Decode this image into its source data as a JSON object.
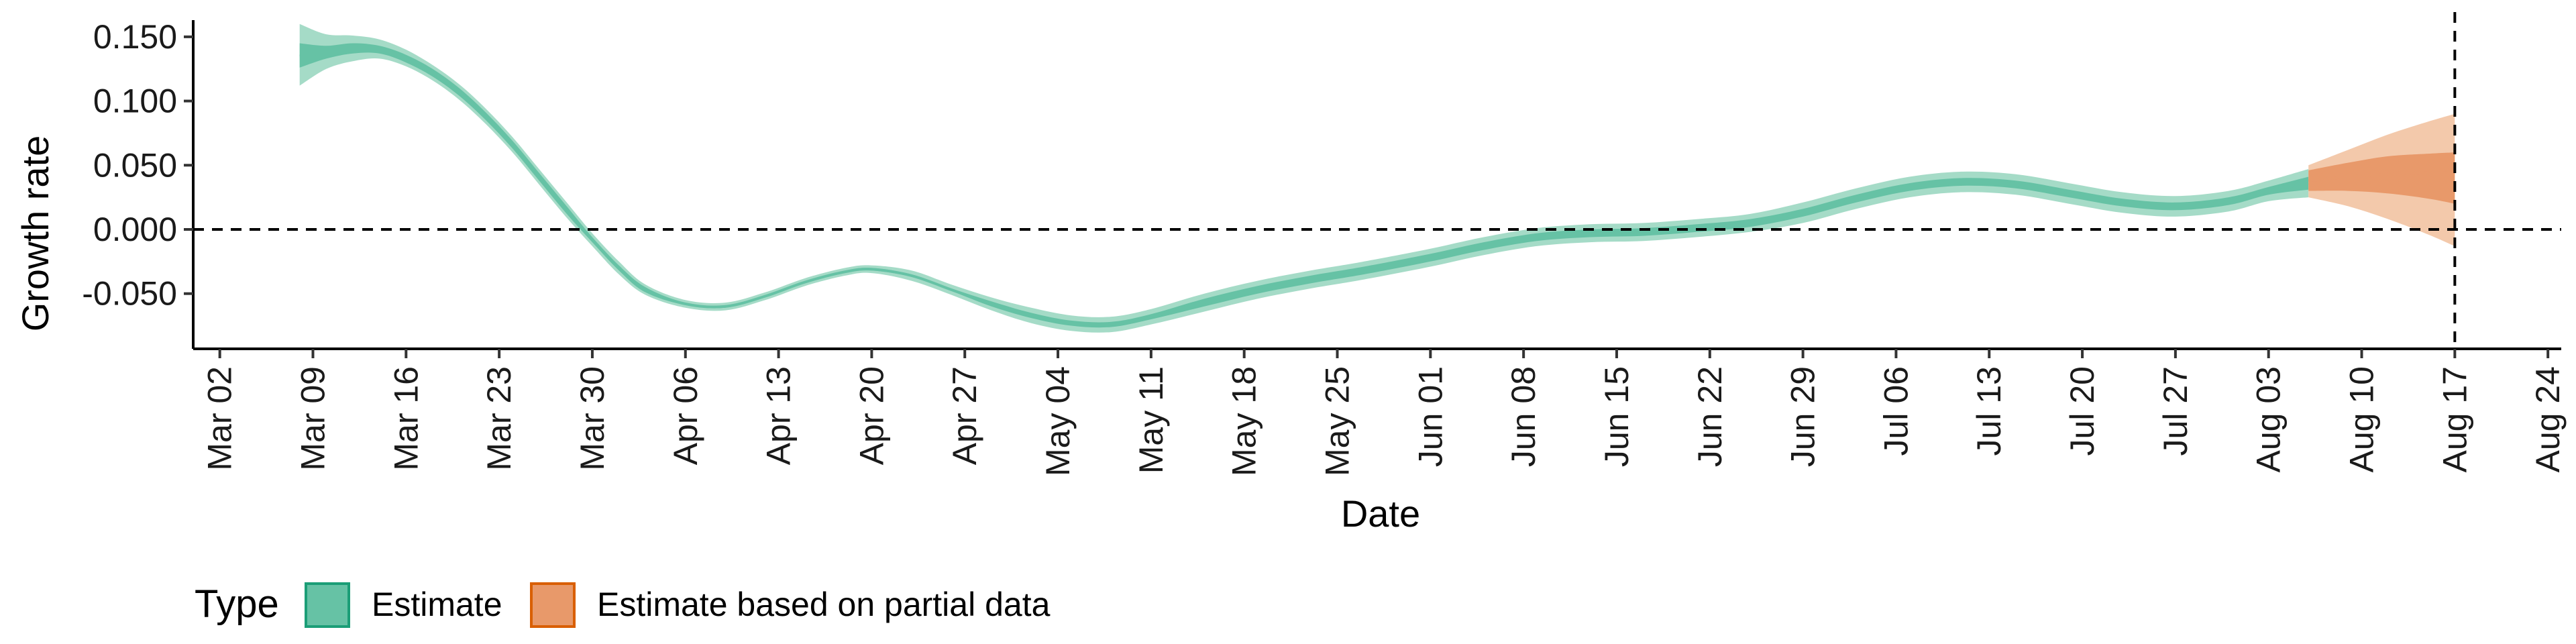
{
  "chart_data": {
    "type": "area",
    "xlabel": "Date",
    "ylabel": "Growth rate",
    "x_axis": {
      "kind": "date",
      "range": [
        "2020-02-29",
        "2020-08-25"
      ],
      "ticks": [
        {
          "date": "2020-03-02",
          "label": "Mar 02"
        },
        {
          "date": "2020-03-09",
          "label": "Mar 09"
        },
        {
          "date": "2020-03-16",
          "label": "Mar 16"
        },
        {
          "date": "2020-03-23",
          "label": "Mar 23"
        },
        {
          "date": "2020-03-30",
          "label": "Mar 30"
        },
        {
          "date": "2020-04-06",
          "label": "Apr 06"
        },
        {
          "date": "2020-04-13",
          "label": "Apr 13"
        },
        {
          "date": "2020-04-20",
          "label": "Apr 20"
        },
        {
          "date": "2020-04-27",
          "label": "Apr 27"
        },
        {
          "date": "2020-05-04",
          "label": "May 04"
        },
        {
          "date": "2020-05-11",
          "label": "May 11"
        },
        {
          "date": "2020-05-18",
          "label": "May 18"
        },
        {
          "date": "2020-05-25",
          "label": "May 25"
        },
        {
          "date": "2020-06-01",
          "label": "Jun 01"
        },
        {
          "date": "2020-06-08",
          "label": "Jun 08"
        },
        {
          "date": "2020-06-15",
          "label": "Jun 15"
        },
        {
          "date": "2020-06-22",
          "label": "Jun 22"
        },
        {
          "date": "2020-06-29",
          "label": "Jun 29"
        },
        {
          "date": "2020-07-06",
          "label": "Jul 06"
        },
        {
          "date": "2020-07-13",
          "label": "Jul 13"
        },
        {
          "date": "2020-07-20",
          "label": "Jul 20"
        },
        {
          "date": "2020-07-27",
          "label": "Jul 27"
        },
        {
          "date": "2020-08-03",
          "label": "Aug 03"
        },
        {
          "date": "2020-08-10",
          "label": "Aug 10"
        },
        {
          "date": "2020-08-17",
          "label": "Aug 17"
        },
        {
          "date": "2020-08-24",
          "label": "Aug 24"
        }
      ]
    },
    "y_axis": {
      "range": [
        -0.093,
        0.163
      ],
      "ticks": [
        {
          "value": 0.15,
          "label": "0.150"
        },
        {
          "value": 0.1,
          "label": "0.100"
        },
        {
          "value": 0.05,
          "label": "0.050"
        },
        {
          "value": 0.0,
          "label": "0.000"
        },
        {
          "value": -0.05,
          "label": "-0.050"
        }
      ]
    },
    "grid": false,
    "reference_lines": [
      {
        "axis": "y",
        "value": 0,
        "style": "dashed"
      },
      {
        "axis": "x",
        "date": "2020-08-17",
        "style": "dashed"
      }
    ],
    "legend": {
      "title": "Type",
      "position": "bottom-left",
      "entries": [
        {
          "label": "Estimate",
          "fill": "#66c2a5",
          "border": "#1b9e77"
        },
        {
          "label": "Estimate based on partial data",
          "fill": "#e8996a",
          "border": "#d95f02"
        }
      ]
    },
    "series": [
      {
        "name": "Estimate",
        "color_outer": "#a5dbc7",
        "color_inner": "#66c2a5",
        "x": [
          "2020-03-08",
          "2020-03-10",
          "2020-03-12",
          "2020-03-14",
          "2020-03-16",
          "2020-03-18",
          "2020-03-20",
          "2020-03-22",
          "2020-03-24",
          "2020-03-26",
          "2020-03-28",
          "2020-03-30",
          "2020-04-01",
          "2020-04-03",
          "2020-04-06",
          "2020-04-09",
          "2020-04-12",
          "2020-04-15",
          "2020-04-18",
          "2020-04-20",
          "2020-04-23",
          "2020-04-26",
          "2020-04-29",
          "2020-05-02",
          "2020-05-05",
          "2020-05-08",
          "2020-05-11",
          "2020-05-15",
          "2020-05-19",
          "2020-05-23",
          "2020-05-27",
          "2020-06-01",
          "2020-06-05",
          "2020-06-09",
          "2020-06-13",
          "2020-06-17",
          "2020-06-21",
          "2020-06-25",
          "2020-06-29",
          "2020-07-03",
          "2020-07-07",
          "2020-07-11",
          "2020-07-15",
          "2020-07-19",
          "2020-07-23",
          "2020-07-27",
          "2020-07-31",
          "2020-08-03",
          "2020-08-06"
        ],
        "median": [
          0.135,
          0.138,
          0.141,
          0.14,
          0.133,
          0.122,
          0.107,
          0.088,
          0.066,
          0.041,
          0.016,
          -0.008,
          -0.03,
          -0.047,
          -0.058,
          -0.06,
          -0.052,
          -0.041,
          -0.033,
          -0.031,
          -0.036,
          -0.047,
          -0.058,
          -0.067,
          -0.073,
          -0.074,
          -0.068,
          -0.057,
          -0.047,
          -0.039,
          -0.032,
          -0.022,
          -0.013,
          -0.006,
          -0.003,
          -0.002,
          0.001,
          0.005,
          0.013,
          0.024,
          0.033,
          0.037,
          0.035,
          0.028,
          0.021,
          0.018,
          0.022,
          0.03,
          0.036
        ],
        "inner_lower": [
          0.126,
          0.133,
          0.137,
          0.137,
          0.13,
          0.119,
          0.104,
          0.085,
          0.063,
          0.038,
          0.013,
          -0.01,
          -0.032,
          -0.049,
          -0.059,
          -0.061,
          -0.053,
          -0.042,
          -0.034,
          -0.032,
          -0.037,
          -0.048,
          -0.06,
          -0.069,
          -0.075,
          -0.076,
          -0.07,
          -0.06,
          -0.05,
          -0.042,
          -0.035,
          -0.025,
          -0.016,
          -0.009,
          -0.006,
          -0.005,
          -0.002,
          0.002,
          0.01,
          0.021,
          0.03,
          0.034,
          0.032,
          0.025,
          0.018,
          0.015,
          0.019,
          0.027,
          0.031
        ],
        "inner_upper": [
          0.145,
          0.143,
          0.145,
          0.143,
          0.136,
          0.125,
          0.11,
          0.091,
          0.069,
          0.044,
          0.019,
          -0.006,
          -0.028,
          -0.045,
          -0.057,
          -0.059,
          -0.051,
          -0.04,
          -0.032,
          -0.03,
          -0.035,
          -0.046,
          -0.056,
          -0.065,
          -0.071,
          -0.072,
          -0.066,
          -0.054,
          -0.044,
          -0.036,
          -0.029,
          -0.019,
          -0.01,
          -0.003,
          0.0,
          0.001,
          0.004,
          0.008,
          0.016,
          0.027,
          0.036,
          0.04,
          0.038,
          0.031,
          0.024,
          0.021,
          0.025,
          0.033,
          0.041
        ],
        "outer_lower": [
          0.112,
          0.125,
          0.131,
          0.133,
          0.127,
          0.116,
          0.101,
          0.082,
          0.06,
          0.035,
          0.01,
          -0.013,
          -0.035,
          -0.051,
          -0.061,
          -0.063,
          -0.055,
          -0.044,
          -0.036,
          -0.034,
          -0.04,
          -0.051,
          -0.063,
          -0.073,
          -0.079,
          -0.08,
          -0.074,
          -0.064,
          -0.054,
          -0.046,
          -0.039,
          -0.029,
          -0.02,
          -0.013,
          -0.01,
          -0.009,
          -0.006,
          -0.002,
          0.005,
          0.016,
          0.025,
          0.029,
          0.027,
          0.02,
          0.013,
          0.01,
          0.014,
          0.022,
          0.025
        ],
        "outer_upper": [
          0.16,
          0.152,
          0.151,
          0.148,
          0.14,
          0.128,
          0.113,
          0.094,
          0.072,
          0.047,
          0.022,
          -0.003,
          -0.025,
          -0.043,
          -0.055,
          -0.057,
          -0.049,
          -0.038,
          -0.03,
          -0.028,
          -0.032,
          -0.043,
          -0.053,
          -0.061,
          -0.067,
          -0.068,
          -0.062,
          -0.05,
          -0.04,
          -0.032,
          -0.025,
          -0.015,
          -0.006,
          0.001,
          0.004,
          0.005,
          0.008,
          0.012,
          0.021,
          0.032,
          0.041,
          0.045,
          0.043,
          0.036,
          0.029,
          0.026,
          0.03,
          0.038,
          0.047
        ]
      },
      {
        "name": "Estimate based on partial data",
        "color_outer": "#f3c9ab",
        "color_inner": "#e8996a",
        "x": [
          "2020-08-06",
          "2020-08-09",
          "2020-08-12",
          "2020-08-15",
          "2020-08-17"
        ],
        "median": [
          0.038,
          0.041,
          0.043,
          0.044,
          0.044
        ],
        "inner_lower": [
          0.03,
          0.03,
          0.028,
          0.024,
          0.02
        ],
        "inner_upper": [
          0.046,
          0.052,
          0.057,
          0.059,
          0.06
        ],
        "outer_lower": [
          0.025,
          0.018,
          0.008,
          -0.004,
          -0.013
        ],
        "outer_upper": [
          0.05,
          0.062,
          0.074,
          0.084,
          0.09
        ]
      }
    ]
  }
}
